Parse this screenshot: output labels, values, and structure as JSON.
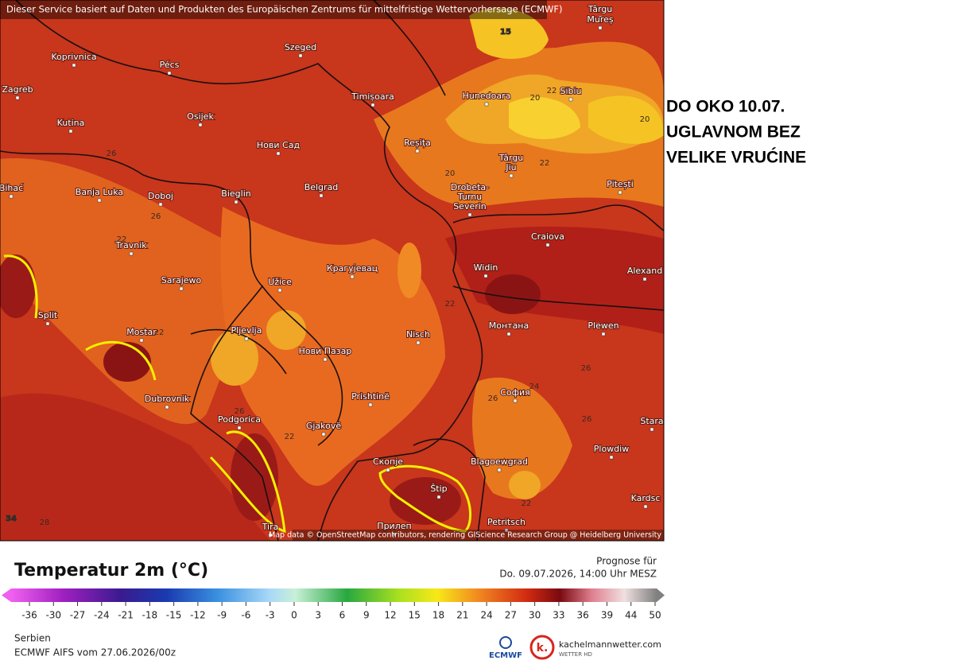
{
  "header_notice": "Dieser Service basiert auf Daten und Produkten des Europäischen Zentrums für mittelfristige Wettervorhersage (ECMWF)",
  "map": {
    "attribution": "Map data © OpenStreetMap contributors, rendering GIScience Research Group @ Heidelberg University",
    "places": [
      "Koprivnica",
      "Pécs",
      "Szeged",
      "Târgu",
      "Mureș",
      "Zagreb",
      "Kutina",
      "Osijek",
      "Timișoara",
      "Hunedoara",
      "Sibiu",
      "Нови Сад",
      "Reșița",
      "Târgu",
      "Jiu",
      "Pitești",
      "Bihać",
      "Banja Luka",
      "Doboj",
      "Bieglin",
      "Belgrad",
      "Drobeta-",
      "Turnu",
      "Severin",
      "Craiova",
      "Travnik",
      "Sarajewo",
      "Užice",
      "Крагујевац",
      "Widin",
      "Alexand",
      "Split",
      "Mostar",
      "Pljevlja",
      "Nisch",
      "Монтана",
      "Plewen",
      "Нови Пазар",
      "София",
      "Dubrovnik",
      "Prishtinë",
      "Stara",
      "Podgorica",
      "Gjakovë",
      "Plowdiw",
      "Скопје",
      "Blagoewgrad",
      "Štip",
      "Kardsc",
      "Tira",
      "Прилеп",
      "Petritsch"
    ],
    "contour_labels": [
      15,
      20,
      22,
      20,
      20,
      22,
      26,
      26,
      22,
      22,
      22,
      26,
      24,
      26,
      26,
      26,
      22,
      22,
      28,
      34
    ]
  },
  "annotation": {
    "lines": [
      "DO OKO 10.07.",
      "UGLAVNOM BEZ",
      "VELIKE VRUĆINE"
    ]
  },
  "legend": {
    "title": "Temperatur 2m (°C)",
    "forecast_label": "Prognose für",
    "forecast_time": "Do. 09.07.2026, 14:00 Uhr MESZ",
    "ticks": [
      -36,
      -30,
      -27,
      -24,
      -21,
      -18,
      -15,
      -12,
      -9,
      -6,
      -3,
      0,
      3,
      6,
      9,
      12,
      15,
      18,
      21,
      24,
      27,
      30,
      33,
      36,
      39,
      44,
      50
    ]
  },
  "footer": {
    "region": "Serbien",
    "model_run": "ECMWF AIFS vom 27.06.2026/00z",
    "ecmwf_logo": "ECMWF",
    "site": "kachelmannwetter.com",
    "site_sub": "WETTER HD"
  }
}
